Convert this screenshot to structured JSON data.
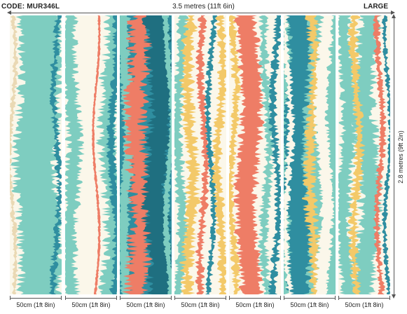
{
  "header": {
    "code": "CODE: MUR346L",
    "width": "3.5 metres (11ft 6in)",
    "size": "LARGE"
  },
  "height_label": "2.8 metres (9ft 2in)",
  "panel_label": "50cm (1ft 8in)",
  "panels": [
    {
      "label": "50cm (1ft 8in)",
      "style": "teal-light"
    },
    {
      "label": "50cm (1ft 8in)",
      "style": "white-teal"
    },
    {
      "label": "50cm (1ft 8in)",
      "style": "teal-coral"
    },
    {
      "label": "50cm (1ft 8in)",
      "style": "cream-multi"
    },
    {
      "label": "50cm (1ft 8in)",
      "style": "coral-center"
    },
    {
      "label": "50cm (1ft 8in)",
      "style": "teal-mix"
    },
    {
      "label": "50cm (1ft 8in)",
      "style": "light-mix"
    }
  ],
  "colors": {
    "cream": "#fbf7ea",
    "mint": "#7ecdc0",
    "teal": "#2f8ea0",
    "darkteal": "#1f6f80",
    "coral": "#ee7d66",
    "yellow": "#f3c969",
    "sand": "#ead9b4"
  }
}
